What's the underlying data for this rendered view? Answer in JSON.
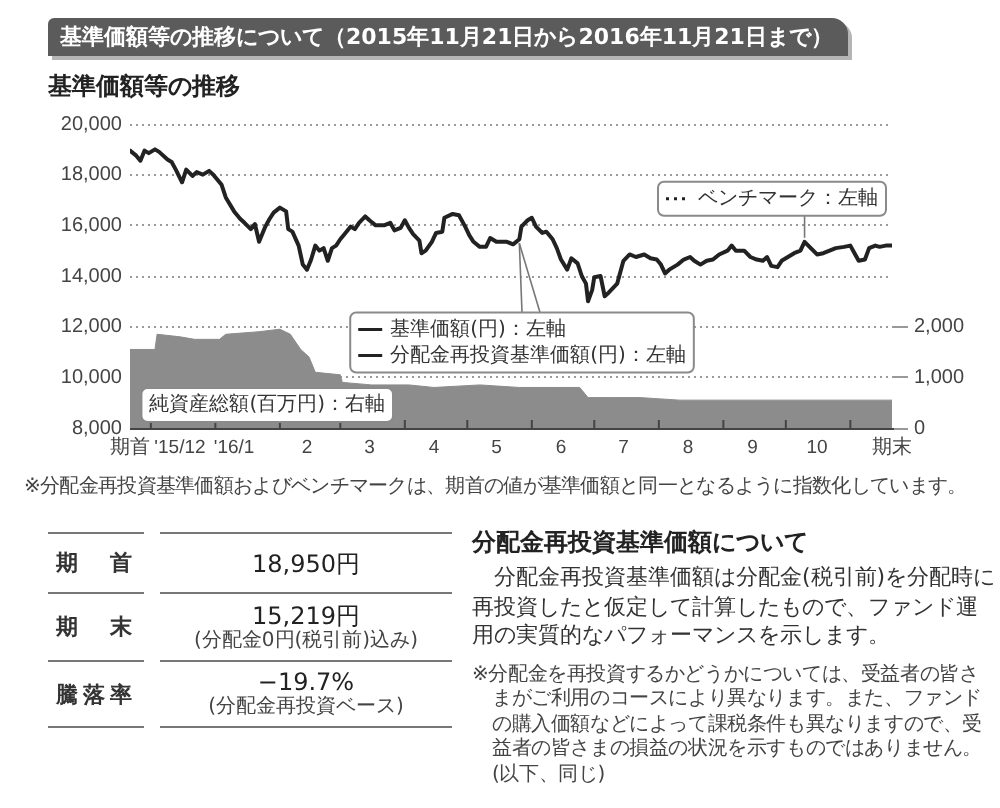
{
  "chart_data": {
    "type": "line",
    "title": "基準価額等の推移について（2015年11月21日から2016年11月21日まで）",
    "subtitle": "基準価額等の推移",
    "x": [
      "2015-11-21",
      "2015-11-24",
      "2015-11-26",
      "2015-11-28",
      "2015-11-30",
      "2015-12-03",
      "2015-12-05",
      "2015-12-09",
      "2015-12-11",
      "2015-12-13",
      "2015-12-16",
      "2015-12-18",
      "2015-12-21",
      "2015-12-23",
      "2015-12-26",
      "2015-12-29",
      "2015-12-31",
      "2016-01-04",
      "2016-01-06",
      "2016-01-10",
      "2016-01-13",
      "2016-01-15",
      "2016-01-18",
      "2016-01-20",
      "2016-01-22",
      "2016-01-25",
      "2016-01-27",
      "2016-01-29",
      "2016-02-01",
      "2016-02-04",
      "2016-02-05",
      "2016-02-07",
      "2016-02-10",
      "2016-02-12",
      "2016-02-14",
      "2016-02-16",
      "2016-02-18",
      "2016-02-20",
      "2016-02-22",
      "2016-02-24",
      "2016-02-26",
      "2016-02-28",
      "2016-03-01",
      "2016-03-03",
      "2016-03-06",
      "2016-03-08",
      "2016-03-10",
      "2016-03-13",
      "2016-03-15",
      "2016-03-18",
      "2016-03-22",
      "2016-03-25",
      "2016-03-27",
      "2016-03-30",
      "2016-04-01",
      "2016-04-03",
      "2016-04-05",
      "2016-04-08",
      "2016-04-09",
      "2016-04-11",
      "2016-04-14",
      "2016-04-16",
      "2016-04-19",
      "2016-04-20",
      "2016-04-24",
      "2016-04-27",
      "2016-04-30",
      "2016-05-02",
      "2016-05-04",
      "2016-05-07",
      "2016-05-10",
      "2016-05-12",
      "2016-05-15",
      "2016-05-20",
      "2016-05-23",
      "2016-05-26",
      "2016-05-27",
      "2016-05-30",
      "2016-06-01",
      "2016-06-03",
      "2016-06-06",
      "2016-06-08",
      "2016-06-11",
      "2016-06-13",
      "2016-06-15",
      "2016-06-18",
      "2016-06-20",
      "2016-06-23",
      "2016-06-25",
      "2016-06-27",
      "2016-06-28",
      "2016-06-30",
      "2016-07-01",
      "2016-07-04",
      "2016-07-06",
      "2016-07-08",
      "2016-07-12",
      "2016-07-15",
      "2016-07-18",
      "2016-07-21",
      "2016-07-25",
      "2016-07-28",
      "2016-07-31",
      "2016-08-02",
      "2016-08-04",
      "2016-08-06",
      "2016-08-10",
      "2016-08-13",
      "2016-08-16",
      "2016-08-18",
      "2016-08-21",
      "2016-08-24",
      "2016-08-27",
      "2016-08-30",
      "2016-09-03",
      "2016-09-05",
      "2016-09-07",
      "2016-09-11",
      "2016-09-14",
      "2016-09-17",
      "2016-09-20",
      "2016-09-22",
      "2016-09-24",
      "2016-09-27",
      "2016-09-29",
      "2016-10-02",
      "2016-10-05",
      "2016-10-08",
      "2016-10-10",
      "2016-10-13",
      "2016-10-16",
      "2016-10-19",
      "2016-10-22",
      "2016-10-25",
      "2016-10-29",
      "2016-11-01",
      "2016-11-03",
      "2016-11-05",
      "2016-11-08",
      "2016-11-10",
      "2016-11-13",
      "2016-11-15",
      "2016-11-18",
      "2016-11-21"
    ],
    "series": [
      {
        "name": "基準価額(円)：左軸",
        "color": "#222222",
        "values": [
          18950,
          18750,
          18550,
          18950,
          18850,
          19000,
          18900,
          18600,
          18500,
          18200,
          17700,
          18200,
          17950,
          18100,
          18000,
          18150,
          18000,
          17600,
          17100,
          16550,
          16250,
          16100,
          15850,
          16050,
          15350,
          15950,
          16250,
          16500,
          16700,
          16550,
          15850,
          15750,
          15200,
          14450,
          14250,
          14650,
          15200,
          15000,
          15100,
          14600,
          15100,
          15200,
          15450,
          15650,
          15950,
          15850,
          16100,
          16350,
          16200,
          16000,
          16000,
          16100,
          15800,
          15900,
          16200,
          15900,
          15650,
          15400,
          14900,
          15000,
          15350,
          15700,
          15750,
          16300,
          16450,
          16400,
          15950,
          15600,
          15350,
          15150,
          15150,
          15500,
          15350,
          15350,
          15250,
          15450,
          15950,
          16200,
          16300,
          15950,
          15700,
          15750,
          15450,
          15100,
          14650,
          14250,
          14700,
          14500,
          14000,
          13700,
          13000,
          13450,
          13950,
          14000,
          13200,
          13350,
          13700,
          14600,
          14850,
          14750,
          14850,
          14700,
          14650,
          14450,
          14100,
          14250,
          14450,
          14650,
          14750,
          14600,
          14450,
          14600,
          14650,
          14850,
          15000,
          15200,
          15000,
          15000,
          14750,
          14650,
          14600,
          14750,
          14400,
          14350,
          14600,
          14750,
          14900,
          15000,
          15350,
          15100,
          14850,
          14900,
          15000,
          15100,
          15150,
          15200,
          14900,
          14600,
          14650,
          15100,
          15200,
          15150,
          15200,
          15200
        ]
      },
      {
        "name": "分配金再投資基準価額(円)：左軸",
        "color": "#222222",
        "values": [
          null,
          null,
          null,
          null,
          null,
          null,
          null,
          null,
          null,
          null,
          null,
          null,
          null,
          null,
          null,
          null,
          null,
          null,
          null,
          null,
          null,
          null,
          null,
          null,
          null,
          null,
          null,
          null,
          null,
          null,
          null,
          null,
          null,
          null,
          null,
          null,
          null,
          null,
          null,
          null,
          null,
          null,
          null,
          null,
          null,
          null,
          null,
          null,
          null,
          null,
          null,
          null,
          null,
          null,
          null,
          null,
          null,
          null,
          null,
          null,
          null,
          null,
          null,
          null,
          null,
          null,
          null,
          null,
          null,
          null,
          null,
          null,
          null,
          null,
          null,
          null,
          null,
          null,
          null,
          null,
          null,
          null,
          null,
          null,
          null,
          null,
          null,
          null,
          null,
          null,
          null,
          null,
          null,
          null,
          null,
          null,
          null,
          null,
          null,
          null,
          null,
          null,
          null,
          null,
          null,
          null,
          null,
          null,
          null,
          null,
          null,
          null,
          null,
          null,
          null,
          null,
          null,
          null,
          null,
          null,
          null,
          null,
          null,
          null,
          null,
          null,
          null,
          null,
          null,
          null,
          null,
          null,
          null,
          null,
          null,
          null,
          null,
          null,
          null,
          null,
          null,
          null,
          null,
          null
        ]
      },
      {
        "name": "ベンチマーク：左軸",
        "color": "#222222",
        "line_style": "dotted",
        "values": [
          null,
          null,
          null,
          null,
          null,
          null,
          null,
          null,
          null,
          null,
          null,
          null,
          null,
          null,
          null,
          null,
          null,
          null,
          null,
          null,
          null,
          null,
          null,
          null,
          null,
          null,
          null,
          null,
          null,
          null,
          null,
          null,
          null,
          null,
          null,
          null,
          null,
          null,
          null,
          null,
          null,
          null,
          null,
          null,
          null,
          null,
          null,
          null,
          null,
          null,
          null,
          null,
          null,
          null,
          null,
          null,
          null,
          null,
          null,
          null,
          null,
          null,
          null,
          null,
          null,
          null,
          null,
          null,
          null,
          null,
          null,
          null,
          null,
          null,
          null,
          null,
          null,
          null,
          null,
          null,
          null,
          null,
          null,
          null,
          null,
          null,
          null,
          null,
          null,
          null,
          null,
          null,
          null,
          null,
          null,
          null,
          null,
          null,
          null,
          null,
          null,
          null,
          null,
          null,
          null,
          null,
          null,
          null,
          null,
          null,
          null,
          null,
          null,
          null,
          null,
          null,
          null,
          null,
          null,
          null,
          null,
          null,
          null,
          null,
          null,
          null,
          null,
          null,
          null,
          null,
          null,
          null,
          null,
          null,
          null,
          null,
          null,
          null,
          null,
          null,
          null,
          null,
          null,
          null
        ]
      },
      {
        "name": "純資産総額(百万円)：右軸",
        "type": "area",
        "axis": "y2",
        "color": "#8c8c8c",
        "x": [
          "2015-11-21",
          "2015-12-03",
          "2015-12-04",
          "2015-12-15",
          "2015-12-22",
          "2016-01-03",
          "2016-01-06",
          "2016-01-22",
          "2016-02-01",
          "2016-02-06",
          "2016-02-11",
          "2016-02-15",
          "2016-02-18",
          "2016-03-01",
          "2016-03-02",
          "2016-03-16",
          "2016-04-03",
          "2016-04-15",
          "2016-05-07",
          "2016-05-26",
          "2016-06-14",
          "2016-06-24",
          "2016-06-28",
          "2016-07-08",
          "2016-07-23",
          "2016-08-11",
          "2016-09-09",
          "2016-10-08",
          "2016-11-05",
          "2016-11-21"
        ],
        "values": [
          1550,
          1550,
          1850,
          1800,
          1750,
          1750,
          1850,
          1900,
          1950,
          1850,
          1550,
          1400,
          1100,
          1050,
          900,
          850,
          850,
          800,
          850,
          800,
          800,
          800,
          600,
          600,
          600,
          550,
          550,
          550,
          550,
          550
        ]
      }
    ],
    "xlim": [
      "2015-11-21",
      "2016-11-21"
    ],
    "xticks": [
      {
        "value": "2015-11-21",
        "label": "期首"
      },
      {
        "value": "2015-12-01",
        "label": null
      },
      {
        "value": "2015-12-15",
        "label": "'15/12"
      },
      {
        "value": "2016-01-01",
        "label": null
      },
      {
        "value": "2016-01-10",
        "label": "'16/1"
      },
      {
        "value": "2016-02-01",
        "label": null
      },
      {
        "value": "2016-02-14",
        "label": "2"
      },
      {
        "value": "2016-03-01",
        "label": null
      },
      {
        "value": "2016-03-15",
        "label": "3"
      },
      {
        "value": "2016-04-01",
        "label": null
      },
      {
        "value": "2016-04-15",
        "label": "4"
      },
      {
        "value": "2016-05-01",
        "label": null
      },
      {
        "value": "2016-05-15",
        "label": "5"
      },
      {
        "value": "2016-06-01",
        "label": null
      },
      {
        "value": "2016-06-15",
        "label": "6"
      },
      {
        "value": "2016-07-01",
        "label": null
      },
      {
        "value": "2016-07-15",
        "label": "7"
      },
      {
        "value": "2016-08-01",
        "label": null
      },
      {
        "value": "2016-08-15",
        "label": "8"
      },
      {
        "value": "2016-09-01",
        "label": null
      },
      {
        "value": "2016-09-15",
        "label": "9"
      },
      {
        "value": "2016-10-01",
        "label": null
      },
      {
        "value": "2016-10-16",
        "label": "10"
      },
      {
        "value": "2016-11-01",
        "label": null
      },
      {
        "value": "2016-11-21",
        "label": "期末"
      }
    ],
    "ylim": [
      8000,
      20000
    ],
    "yticks": [
      {
        "value": 8000,
        "label": "8,000"
      },
      {
        "value": 10000,
        "label": "10,000"
      },
      {
        "value": 12000,
        "label": "12,000"
      },
      {
        "value": 14000,
        "label": "14,000"
      },
      {
        "value": 16000,
        "label": "16,000"
      },
      {
        "value": 18000,
        "label": "18,000"
      },
      {
        "value": 20000,
        "label": "20,000"
      }
    ],
    "y2lim": [
      0,
      6000
    ],
    "y2ticks": [
      0,
      {
        "value": 1000,
        "label": "1,000"
      },
      {
        "value": 2000,
        "label": "2,000"
      }
    ],
    "grid": "y",
    "marker": "none",
    "legend": "right",
    "annotations": [
      "※分配金再投資基準価額およびベンチマークは、期首の値が基準価額と同一となるように指数化しています。",
      "期首",
      "18,950円",
      "期末",
      "15,219円",
      "(分配金0円(税引前)込み)",
      "騰落率",
      "−19.7%",
      "(分配金再投資ベース)",
      "分配金再投資基準価額について",
      "分配金再投資基準価額は分配金(税引前)を分配時に再投資したと仮定して計算したもので、ファンド運用の実質的なパフォーマンスを示します。",
      "※分配金を再投資するかどうかについては、受益者の皆さまがご利用のコースにより異なります。また、ファンドの購入価額などによって課税条件も異なりますので、受益者の皆さまの損益の状況を示すものではありません。(以下、同じ)"
    ]
  }
}
